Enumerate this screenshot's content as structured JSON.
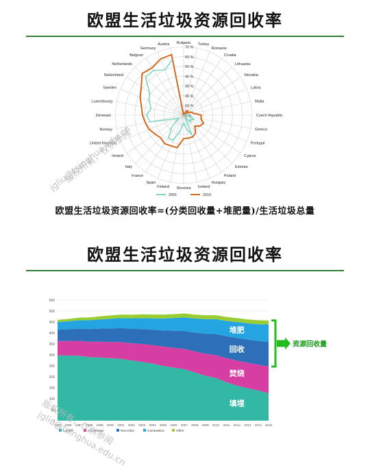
{
  "top": {
    "title": "欧盟生活垃圾资源回收率",
    "formula": "欧盟生活垃圾资源回收率=(分类回收量+堆肥量)/生活垃圾总量"
  },
  "bottom": {
    "title": "欧盟生活垃圾资源回收率",
    "bracket_label": "资源回收量"
  },
  "watermarks": [
    "版权所有，仅供参阅",
    "jgliu@tsinghua.edu.cn"
  ],
  "colors": {
    "rule": "#2e7d32",
    "series_2001": "#7ed6c0",
    "series_2010": "#d2691e",
    "landfill": "#33b8a6",
    "incineration": "#d63ea3",
    "recycling": "#2d6fb8",
    "composting": "#24a4e0",
    "other": "#9acd32",
    "bracket": "#22bb22"
  },
  "chart_data": [
    {
      "type": "radar",
      "categories": [
        "Bulgaria",
        "Turkey",
        "Romania",
        "Croatia",
        "Lithuania",
        "Slovakia",
        "Latvia",
        "Malta",
        "Czech Republic",
        "Greece",
        "Portugal",
        "Cyprus",
        "Estonia",
        "Poland",
        "Hungary",
        "Iceland",
        "Slovenia",
        "Finland",
        "Spain",
        "France",
        "Italy",
        "Ireland",
        "United Kingdom",
        "Norway",
        "Denmark",
        "Luxembourg",
        "Sweden",
        "Switzerland",
        "Netherlands",
        "Belgium",
        "Germany",
        "Austria"
      ],
      "tick_labels": [
        "0 %",
        "10 %",
        "20 %",
        "30 %",
        "40 %",
        "50 %",
        "60 %",
        "70 %"
      ],
      "rlim": [
        0,
        70
      ],
      "legend_placement": "bottom",
      "series": [
        {
          "name": "2001",
          "values": [
            0,
            0,
            0,
            0,
            2,
            5,
            3,
            2,
            4,
            5,
            12,
            8,
            10,
            3,
            22,
            14,
            8,
            16,
            28,
            28,
            17,
            6,
            10,
            35,
            38,
            34,
            38,
            42,
            55,
            55,
            50,
            58
          ]
        },
        {
          "name": "2010",
          "values": [
            0,
            1,
            1,
            5,
            6,
            4,
            8,
            10,
            18,
            18,
            22,
            20,
            16,
            22,
            24,
            24,
            24,
            34,
            34,
            35,
            33,
            35,
            38,
            40,
            42,
            44,
            48,
            52,
            60,
            58,
            62,
            63
          ]
        }
      ]
    },
    {
      "type": "area",
      "stacked": true,
      "x": [
        1995,
        1996,
        1997,
        1998,
        1999,
        2000,
        2001,
        2002,
        2003,
        2004,
        2005,
        2006,
        2007,
        2008,
        2009,
        2010,
        2011,
        2012,
        2013,
        2014,
        2015
      ],
      "yticks": [
        0,
        50,
        100,
        150,
        200,
        250,
        300,
        350,
        400,
        450,
        500,
        550
      ],
      "ylim": [
        0,
        550
      ],
      "legend_placement": "bottom",
      "series": [
        {
          "name": "Landfill",
          "values": [
            298,
            297,
            296,
            290,
            288,
            285,
            282,
            275,
            268,
            260,
            250,
            242,
            235,
            220,
            205,
            195,
            175,
            160,
            148,
            138,
            125
          ]
        },
        {
          "name": "Incineration",
          "values": [
            65,
            66,
            68,
            70,
            72,
            74,
            76,
            78,
            82,
            85,
            88,
            90,
            92,
            96,
            100,
            104,
            110,
            114,
            116,
            118,
            122
          ]
        },
        {
          "name": "Recycling",
          "values": [
            52,
            54,
            56,
            58,
            60,
            62,
            64,
            66,
            68,
            70,
            74,
            78,
            82,
            86,
            92,
            96,
            100,
            104,
            106,
            108,
            112
          ]
        },
        {
          "name": "Composting",
          "values": [
            35,
            36,
            38,
            40,
            42,
            44,
            46,
            48,
            50,
            52,
            54,
            58,
            62,
            64,
            66,
            68,
            70,
            72,
            74,
            76,
            80
          ]
        },
        {
          "name": "Other",
          "values": [
            10,
            11,
            12,
            13,
            14,
            15,
            16,
            16,
            17,
            17,
            18,
            18,
            18,
            18,
            18,
            18,
            18,
            18,
            18,
            18,
            18
          ]
        }
      ],
      "annotations": [
        "堆肥",
        "回收",
        "焚烧",
        "填埋"
      ]
    }
  ]
}
